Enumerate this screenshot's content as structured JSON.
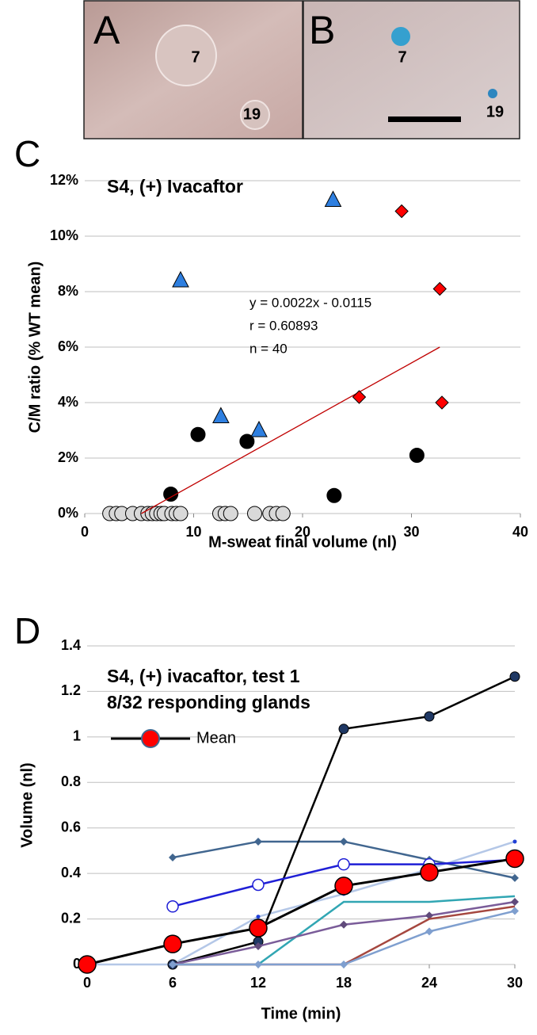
{
  "images": [
    {
      "label": "A",
      "annotations": [
        "7",
        "19"
      ]
    },
    {
      "label": "B",
      "annotations": [
        "7",
        "19"
      ]
    }
  ],
  "chart_data": [
    {
      "type": "scatter",
      "panel": "C",
      "title": "S4, (+) Ivacaftor",
      "xlabel": "M-sweat final volume (nl)",
      "ylabel": "C/M ratio (% WT mean)",
      "xlim": [
        0,
        40
      ],
      "xticks": [
        0,
        10,
        20,
        30,
        40
      ],
      "ylim": [
        0,
        12
      ],
      "yticks": [
        {
          "value": 0,
          "label": "0%"
        },
        {
          "value": 2,
          "label": "2%"
        },
        {
          "value": 4,
          "label": "4%"
        },
        {
          "value": 6,
          "label": "6%"
        },
        {
          "value": 8,
          "label": "8%"
        },
        {
          "value": 10,
          "label": "10%"
        },
        {
          "value": 12,
          "label": "12%"
        }
      ],
      "grid": true,
      "series": [
        {
          "marker": "circle",
          "color": "#d9d9d9",
          "x": [
            2.3,
            2.9,
            3.4,
            4.4,
            5.2,
            5.8,
            6.2,
            6.6,
            7.0,
            7.3,
            8.0,
            8.4,
            8.8,
            12.4,
            12.9,
            13.4,
            15.6,
            17.0,
            17.6,
            18.2
          ],
          "y": [
            0,
            0,
            0,
            0,
            0,
            0,
            0,
            0,
            0,
            0,
            0,
            0,
            0,
            0,
            0,
            0,
            0,
            0,
            0,
            0
          ]
        },
        {
          "marker": "circle",
          "color": "#000000",
          "x": [
            7.9,
            10.4,
            14.9,
            22.9,
            30.5
          ],
          "y": [
            0.7,
            2.85,
            2.6,
            0.65,
            2.1
          ]
        },
        {
          "marker": "triangle",
          "color": "#2e7fe0",
          "x": [
            8.8,
            12.5,
            16.0,
            22.8
          ],
          "y": [
            8.4,
            3.5,
            3.0,
            11.3
          ]
        },
        {
          "marker": "diamond",
          "color": "#ff0000",
          "x": [
            25.2,
            29.1,
            32.6,
            32.8
          ],
          "y": [
            4.2,
            10.9,
            8.1,
            4.0
          ]
        }
      ],
      "trendline": {
        "color": "#c00000",
        "x": [
          5.2,
          32.6
        ],
        "y": [
          0,
          6.0
        ]
      },
      "annotations": [
        "y = 0.0022x - 0.0115",
        "r = 0.60893",
        "n = 40"
      ]
    },
    {
      "type": "line",
      "panel": "D",
      "title": [
        "S4, (+) ivacaftor, test 1",
        "8/32 responding glands"
      ],
      "xlabel": "Time (min)",
      "ylabel": "Volume (nl)",
      "x": [
        0,
        6,
        12,
        18,
        24,
        30
      ],
      "xlim": [
        0,
        30
      ],
      "xticks": [
        0,
        6,
        12,
        18,
        24,
        30
      ],
      "ylim": [
        0,
        1.4
      ],
      "yticks": [
        0,
        0.2,
        0.4,
        0.6,
        0.8,
        1,
        1.2,
        1.4
      ],
      "grid": true,
      "legend": "upper left",
      "series": [
        {
          "color": "#b4c7e7",
          "marker": "dot",
          "marker_color": "#1f3fd6",
          "values": [
            0,
            0,
            0.21,
            0.31,
            0.42,
            0.54
          ]
        },
        {
          "color": "#41668f",
          "marker": "diamond",
          "marker_color": "#41668f",
          "values": [
            null,
            0.47,
            0.54,
            0.54,
            0.46,
            0.38
          ]
        },
        {
          "color": "#000000",
          "marker": "circle",
          "marker_color": "#1f3864",
          "values": [
            null,
            0,
            0.1,
            1.035,
            1.09,
            1.265
          ]
        },
        {
          "color": "#1f1fd6",
          "marker": "open-circle",
          "marker_color": "#ffffff",
          "values": [
            null,
            0.255,
            0.35,
            0.44,
            0.44,
            0.46
          ]
        },
        {
          "color": "#31a6b3",
          "marker": "none",
          "marker_color": "#31a6b3",
          "values": [
            null,
            0,
            0,
            0.275,
            0.275,
            0.3
          ]
        },
        {
          "color": "#7a5c99",
          "marker": "diamond",
          "marker_color": "#604a7b",
          "values": [
            null,
            0,
            0.08,
            0.175,
            0.215,
            0.275
          ]
        },
        {
          "color": "#a5473f",
          "marker": "none",
          "marker_color": "#a5473f",
          "values": [
            null,
            0,
            0,
            0,
            0.2,
            0.255
          ]
        },
        {
          "color": "#7f9fcf",
          "marker": "diamond",
          "marker_color": "#7f9fcf",
          "values": [
            null,
            0,
            0,
            0,
            0.145,
            0.235
          ]
        },
        {
          "name": "Mean",
          "color": "#000000",
          "marker": "big-circle",
          "marker_color": "#ff0000",
          "values": [
            0,
            0.09,
            0.16,
            0.345,
            0.405,
            0.465
          ]
        }
      ]
    }
  ]
}
